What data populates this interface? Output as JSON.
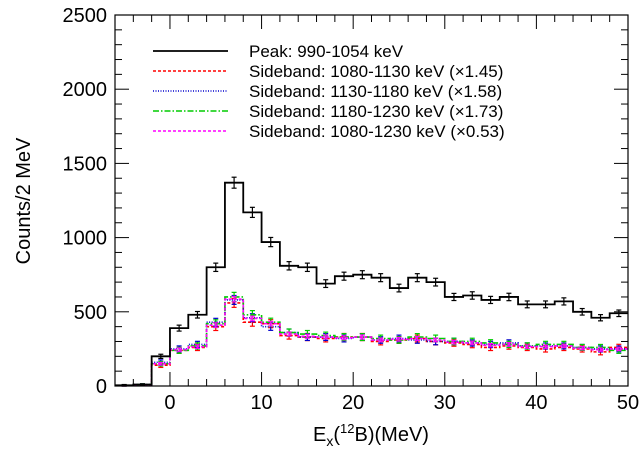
{
  "chart_data": {
    "type": "line",
    "xlabel_main": "E",
    "xlabel_sub": "x",
    "xlabel_paren_open": "(",
    "xlabel_sup": "12",
    "xlabel_rest": "B)(MeV)",
    "ylabel": "Counts/2 MeV",
    "xlim": [
      -6,
      50
    ],
    "ylim": [
      0,
      2500
    ],
    "xticks": [
      0,
      10,
      20,
      30,
      40,
      50
    ],
    "yticks": [
      0,
      500,
      1000,
      1500,
      2000,
      2500
    ],
    "xtick_labels": [
      "0",
      "10",
      "20",
      "30",
      "40",
      "50"
    ],
    "ytick_labels": [
      "0",
      "500",
      "1000",
      "1500",
      "2000",
      "2500"
    ],
    "grid": false,
    "legend_position": "top",
    "bin_width": 2,
    "bin_edges_start": -6,
    "series": [
      {
        "name": "Peak: 990-1054 keV",
        "color": "#000000",
        "dash": "",
        "values": [
          5,
          10,
          200,
          390,
          480,
          800,
          1370,
          1170,
          970,
          810,
          800,
          690,
          740,
          750,
          730,
          660,
          730,
          700,
          600,
          610,
          580,
          600,
          550,
          550,
          570,
          500,
          460,
          490
        ],
        "errors": [
          5,
          5,
          14,
          20,
          22,
          28,
          37,
          34,
          31,
          28,
          28,
          26,
          27,
          27,
          27,
          26,
          27,
          26,
          24,
          25,
          24,
          25,
          23,
          23,
          24,
          22,
          21,
          22
        ]
      },
      {
        "name": "Sideband: 1080-1130 keV (×1.45)",
        "color": "#ff0000",
        "dash": "3,2",
        "values": [
          3,
          8,
          140,
          240,
          260,
          400,
          560,
          430,
          420,
          340,
          330,
          320,
          330,
          330,
          300,
          310,
          320,
          300,
          290,
          280,
          260,
          270,
          260,
          250,
          260,
          250,
          230,
          260
        ],
        "errors": [
          4,
          4,
          15,
          20,
          21,
          26,
          30,
          27,
          27,
          24,
          24,
          23,
          24,
          24,
          23,
          23,
          23,
          23,
          22,
          22,
          21,
          22,
          21,
          21,
          21,
          21,
          20,
          21
        ]
      },
      {
        "name": "Sideband: 1130-1180 keV (×1.58)",
        "color": "#0000cc",
        "dash": "1,1.5",
        "values": [
          3,
          10,
          160,
          250,
          280,
          430,
          580,
          460,
          400,
          360,
          330,
          330,
          320,
          330,
          310,
          320,
          310,
          300,
          300,
          290,
          280,
          290,
          270,
          270,
          270,
          260,
          250,
          250
        ],
        "errors": [
          4,
          4,
          16,
          20,
          21,
          26,
          30,
          27,
          25,
          24,
          23,
          23,
          23,
          23,
          22,
          23,
          22,
          22,
          22,
          21,
          21,
          21,
          20,
          20,
          20,
          20,
          20,
          20
        ]
      },
      {
        "name": "Sideband: 1180-1230 keV (×1.73)",
        "color": "#00cc00",
        "dash": "6,2,1.5,2",
        "values": [
          4,
          10,
          150,
          240,
          270,
          420,
          600,
          480,
          430,
          360,
          350,
          340,
          330,
          330,
          320,
          310,
          330,
          320,
          300,
          300,
          290,
          280,
          270,
          280,
          280,
          260,
          260,
          240
        ],
        "errors": [
          4,
          4,
          15,
          20,
          21,
          26,
          31,
          28,
          27,
          24,
          24,
          23,
          23,
          23,
          23,
          22,
          23,
          23,
          22,
          22,
          22,
          21,
          21,
          21,
          21,
          20,
          20,
          20
        ]
      },
      {
        "name": "Sideband: 1080-1230 keV (×0.53)",
        "color": "#ff00ff",
        "dash": "3,2",
        "values": [
          3,
          9,
          150,
          245,
          265,
          410,
          585,
          455,
          420,
          350,
          335,
          330,
          325,
          330,
          310,
          315,
          320,
          310,
          295,
          290,
          275,
          280,
          265,
          265,
          270,
          255,
          245,
          250
        ],
        "errors": [
          3,
          3,
          9,
          11,
          12,
          15,
          18,
          16,
          15,
          13,
          13,
          13,
          13,
          13,
          12,
          12,
          13,
          12,
          12,
          12,
          11,
          12,
          11,
          11,
          11,
          11,
          11,
          11
        ]
      }
    ]
  }
}
